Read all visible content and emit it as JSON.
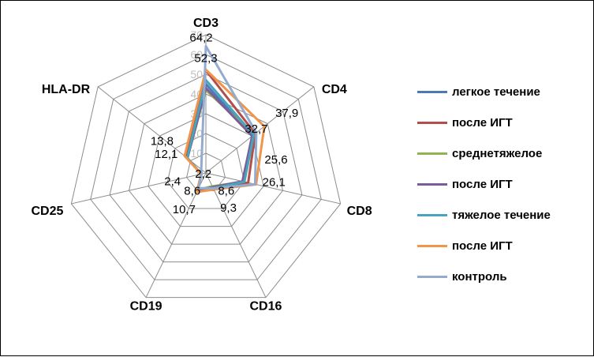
{
  "chart_data": {
    "type": "radar",
    "categories": [
      "CD3",
      "CD4",
      "CD8",
      "CD16",
      "CD19",
      "CD25",
      "HLA-DR"
    ],
    "rlim": [
      0,
      70
    ],
    "tick_values": [
      "0",
      "10",
      "20",
      "30",
      "40",
      "50",
      "60",
      "70"
    ],
    "series": [
      {
        "name": "легкое течение",
        "color": "#4a7ab5",
        "values": [
          45,
          30,
          20,
          8.6,
          9.5,
          2.4,
          12
        ]
      },
      {
        "name": "после ИГТ",
        "color": "#b04f4c",
        "values": [
          52,
          32,
          22,
          8.8,
          10,
          2.4,
          13
        ]
      },
      {
        "name": "среднетяжелое",
        "color": "#91b54e",
        "values": [
          42,
          31,
          20,
          7.5,
          9.5,
          2.4,
          12
        ]
      },
      {
        "name": "после ИГТ",
        "color": "#7a5c9a",
        "values": [
          43,
          30,
          19,
          8,
          9.5,
          2.4,
          12
        ]
      },
      {
        "name": "тяжелое течение",
        "color": "#4aa3bc",
        "values": [
          47,
          31,
          20,
          8.6,
          8.6,
          2.4,
          12.1
        ]
      },
      {
        "name": "после ИГТ",
        "color": "#f0954a",
        "values": [
          52.3,
          37.9,
          26.1,
          9.3,
          10.7,
          2.4,
          13.8
        ]
      },
      {
        "name": "контроль",
        "color": "#94abd0",
        "values": [
          64.2,
          32.7,
          25.6,
          8.6,
          8.6,
          2.2,
          3
        ]
      }
    ],
    "data_labels": [
      {
        "text": "64,2",
        "series": 6,
        "cat": 0
      },
      {
        "text": "52,3",
        "series": 5,
        "cat": 0
      },
      {
        "text": "37,9",
        "series": 5,
        "cat": 1
      },
      {
        "text": "32,7",
        "series": 6,
        "cat": 1
      },
      {
        "text": "25,6",
        "series": 6,
        "cat": 2
      },
      {
        "text": "26,1",
        "series": 5,
        "cat": 2
      },
      {
        "text": "8,6",
        "series": 6,
        "cat": 3
      },
      {
        "text": "9,3",
        "series": 5,
        "cat": 3
      },
      {
        "text": "8,6",
        "series": 6,
        "cat": 4
      },
      {
        "text": "10,7",
        "series": 5,
        "cat": 4
      },
      {
        "text": "2,4",
        "series": 5,
        "cat": 5
      },
      {
        "text": "2,2",
        "series": 6,
        "cat": 5
      },
      {
        "text": "13,8",
        "series": 5,
        "cat": 6
      },
      {
        "text": "12,1",
        "series": 4,
        "cat": 6
      }
    ],
    "legend_position": "right"
  }
}
